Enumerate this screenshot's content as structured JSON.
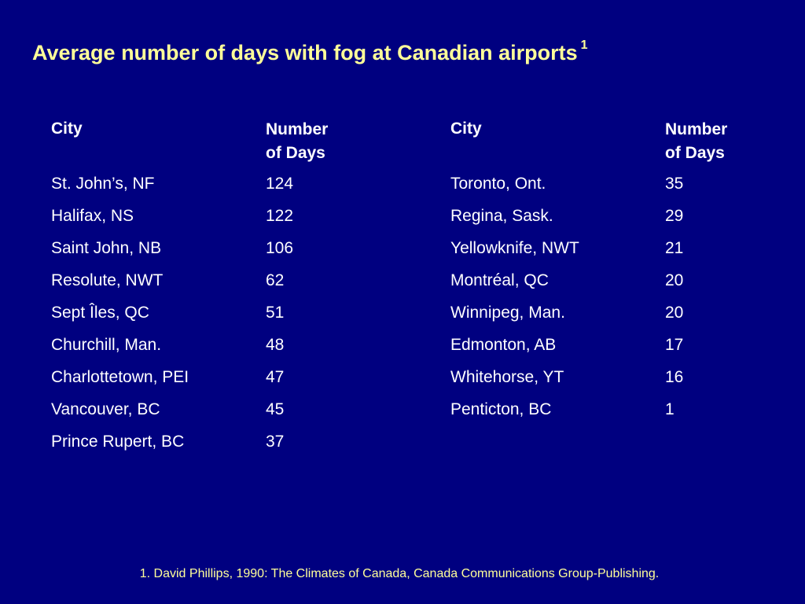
{
  "title": {
    "text": "Average number of days with fog at Canadian airports",
    "footnote_marker": "1"
  },
  "table_left": {
    "header_city": "City",
    "header_days_line1": "Number",
    "header_days_line2": "of Days",
    "rows": [
      {
        "city": "St. John’s, NF",
        "days": "124"
      },
      {
        "city": "Halifax, NS",
        "days": "122"
      },
      {
        "city": "Saint John, NB",
        "days": "106"
      },
      {
        "city": "Resolute, NWT",
        "days": "62"
      },
      {
        "city": "Sept Îles, QC",
        "days": "51"
      },
      {
        "city": "Churchill, Man.",
        "days": "48"
      },
      {
        "city": "Charlottetown, PEI",
        "days": "47"
      },
      {
        "city": "Vancouver, BC",
        "days": "45"
      },
      {
        "city": "Prince Rupert, BC",
        "days": "37"
      }
    ]
  },
  "table_right": {
    "header_city": "City",
    "header_days_line1": "Number",
    "header_days_line2": "of Days",
    "rows": [
      {
        "city": "Toronto, Ont.",
        "days": "35"
      },
      {
        "city": "Regina, Sask.",
        "days": "29"
      },
      {
        "city": "Yellowknife, NWT",
        "days": "21"
      },
      {
        "city": "Montréal, QC",
        "days": "20"
      },
      {
        "city": "Winnipeg, Man.",
        "days": "20"
      },
      {
        "city": "Edmonton, AB",
        "days": "17"
      },
      {
        "city": "Whitehorse, YT",
        "days": "16"
      },
      {
        "city": "Penticton, BC",
        "days": "1"
      }
    ]
  },
  "footnote": "1. David Phillips, 1990: The Climates of Canada, Canada Communications Group-Publishing.",
  "colors": {
    "background": "#000080",
    "title": "#ffff99",
    "text": "#ffffff"
  }
}
